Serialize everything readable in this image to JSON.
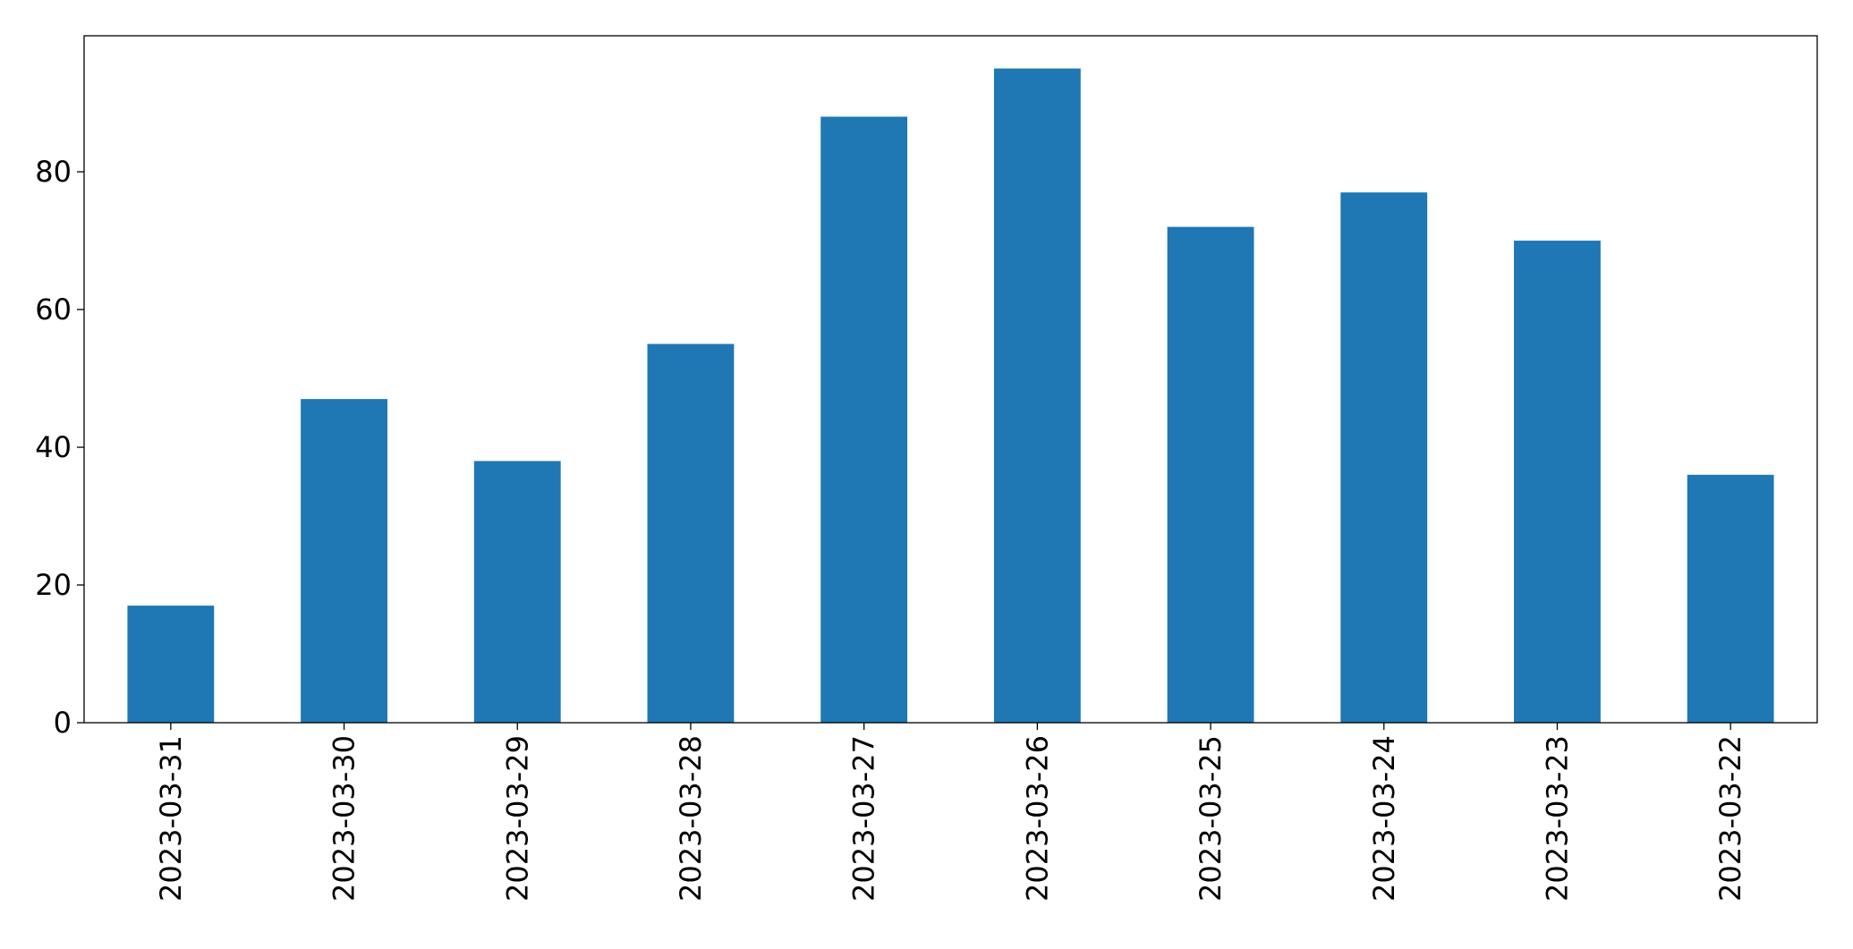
{
  "chart_data": {
    "type": "bar",
    "categories": [
      "2023-03-31",
      "2023-03-30",
      "2023-03-29",
      "2023-03-28",
      "2023-03-27",
      "2023-03-26",
      "2023-03-25",
      "2023-03-24",
      "2023-03-23",
      "2023-03-22"
    ],
    "values": [
      17,
      47,
      38,
      55,
      88,
      95,
      72,
      77,
      70,
      36
    ],
    "color": "#1f77b4",
    "ylim": [
      0,
      99.75
    ],
    "yticks": [
      0,
      20,
      40,
      60,
      80
    ],
    "grid": false
  }
}
